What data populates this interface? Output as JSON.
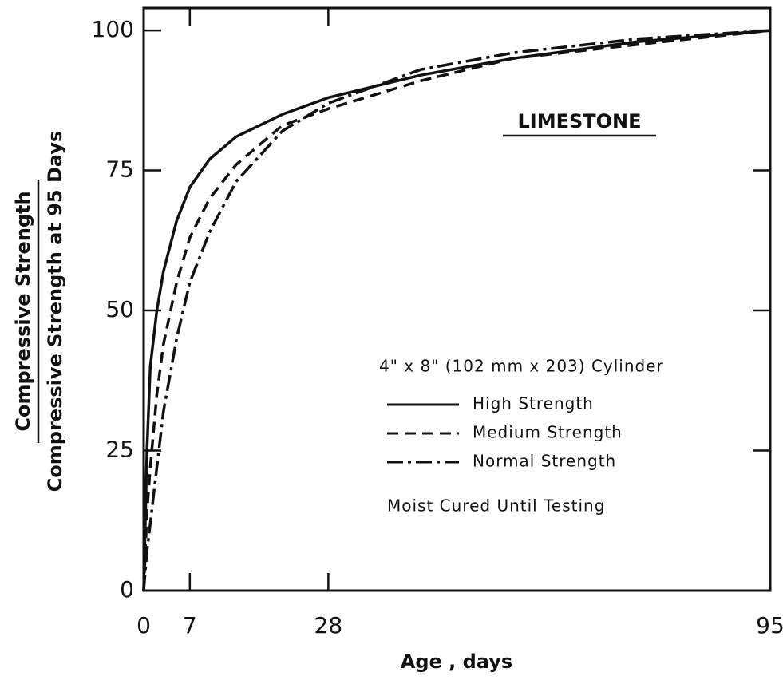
{
  "chart_data": {
    "type": "line",
    "title": "LIMESTONE",
    "x_label": "Age , days",
    "y_label": [
      "Compressive Strength",
      "Compressive Strength at 95 Days"
    ],
    "annotations": [
      "4\" x 8\" (102 mm x 203) Cylinder",
      "Moist Cured Until Testing"
    ],
    "x": [
      0,
      0.5,
      1,
      2,
      3,
      5,
      7,
      10,
      14,
      21,
      28,
      42,
      56,
      75,
      95
    ],
    "series": [
      {
        "name": "High Strength",
        "color": "#111111",
        "style": "solid",
        "values": [
          0,
          25,
          40,
          50,
          57,
          66,
          72,
          77,
          81,
          85,
          88,
          92,
          95,
          98,
          100
        ]
      },
      {
        "name": "Medium Strength",
        "color": "#111111",
        "style": "dashed",
        "values": [
          0,
          14,
          22,
          35,
          44,
          55,
          63,
          70,
          76,
          83,
          86,
          91,
          95,
          97.5,
          100
        ]
      },
      {
        "name": "Normal Strength",
        "color": "#111111",
        "style": "dashdot",
        "values": [
          0,
          7,
          12,
          22,
          32,
          45,
          55,
          64,
          73,
          82,
          87,
          93,
          96,
          98.5,
          100
        ]
      }
    ],
    "xlim": [
      0,
      95
    ],
    "xticks": [
      0,
      7,
      28,
      95
    ],
    "ylim": [
      0,
      104
    ],
    "yticks": [
      0,
      25,
      50,
      75,
      100
    ],
    "grid": false
  }
}
